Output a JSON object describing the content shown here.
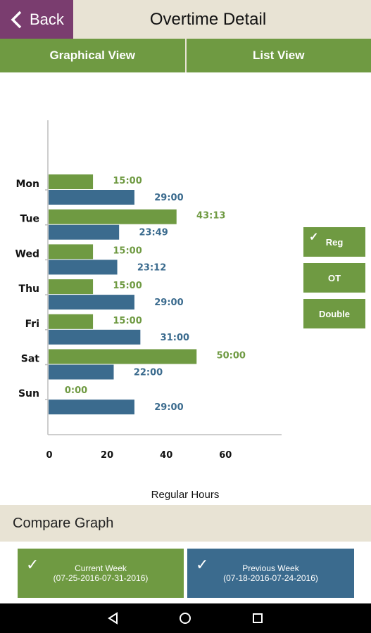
{
  "header": {
    "back_label": "Back",
    "title": "Overtime Detail"
  },
  "tabs": [
    {
      "label": "Graphical View"
    },
    {
      "label": "List View"
    }
  ],
  "legend": [
    {
      "label": "Reg",
      "checked": true
    },
    {
      "label": "OT",
      "checked": false
    },
    {
      "label": "Double",
      "checked": false
    }
  ],
  "colors": {
    "current": "#6f9a42",
    "previous": "#3b6b8e",
    "accent": "#7a3d6f"
  },
  "chart_data": {
    "type": "bar",
    "orientation": "horizontal",
    "categories": [
      "Mon",
      "Tue",
      "Wed",
      "Thu",
      "Fri",
      "Sat",
      "Sun"
    ],
    "series": [
      {
        "name": "Current Week",
        "values": [
          15,
          43.22,
          15,
          15,
          15,
          50,
          0
        ],
        "labels": [
          "15:00",
          "43:13",
          "15:00",
          "15:00",
          "15:00",
          "50:00",
          "0:00"
        ]
      },
      {
        "name": "Previous Week",
        "values": [
          29,
          23.82,
          23.2,
          29,
          31,
          22,
          29
        ],
        "labels": [
          "29:00",
          "23:49",
          "23:12",
          "29:00",
          "31:00",
          "22:00",
          "29:00"
        ]
      }
    ],
    "xticks": [
      "0",
      "20",
      "40",
      "60"
    ],
    "xlim": [
      0,
      75
    ],
    "xlabel": "Regular Hours"
  },
  "compare": {
    "title": "Compare Graph",
    "current": {
      "label": "Current Week",
      "range": "(07-25-2016-07-31-2016)"
    },
    "previous": {
      "label": "Previous Week",
      "range": "(07-18-2016-07-24-2016)"
    }
  },
  "navbar": {
    "back_icon": "back-triangle-icon",
    "home_icon": "home-circle-icon",
    "recents_icon": "recents-square-icon"
  }
}
